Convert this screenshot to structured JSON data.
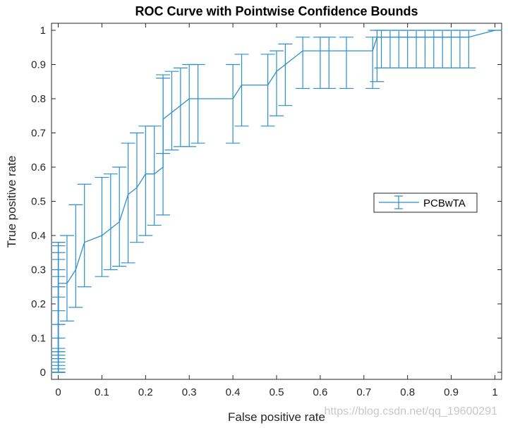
{
  "chart_data": {
    "type": "line",
    "title": "ROC Curve with Pointwise Confidence Bounds",
    "xlabel": "False positive rate",
    "ylabel": "True positive rate",
    "xlim": [
      0,
      1
    ],
    "ylim": [
      0,
      1
    ],
    "xticks": [
      0,
      0.1,
      0.2,
      0.3,
      0.4,
      0.5,
      0.6,
      0.7,
      0.8,
      0.9,
      1
    ],
    "xtick_labels": [
      "0",
      "0.1",
      "0.2",
      "0.3",
      "0.4",
      "0.5",
      "0.6",
      "0.7",
      "0.8",
      "0.9",
      "1"
    ],
    "yticks": [
      0,
      0.1,
      0.2,
      0.3,
      0.4,
      0.5,
      0.6,
      0.7,
      0.8,
      0.9,
      1
    ],
    "ytick_labels": [
      "0",
      "0.1",
      "0.2",
      "0.3",
      "0.4",
      "0.5",
      "0.6",
      "0.7",
      "0.8",
      "0.9",
      "1"
    ],
    "grid": false,
    "legend_position": "center-right",
    "series": [
      {
        "name": "PCBwTA",
        "color": "#2c8fcb",
        "x": [
          0,
          0,
          0,
          0,
          0,
          0,
          0,
          0,
          0,
          0,
          0,
          0,
          0,
          0.02,
          0.04,
          0.06,
          0.1,
          0.12,
          0.14,
          0.16,
          0.18,
          0.2,
          0.22,
          0.24,
          0.24,
          0.26,
          0.28,
          0.3,
          0.32,
          0.4,
          0.42,
          0.48,
          0.5,
          0.52,
          0.56,
          0.6,
          0.62,
          0.66,
          0.72,
          0.73,
          0.74,
          0.76,
          0.78,
          0.8,
          0.82,
          0.84,
          0.86,
          0.88,
          0.9,
          0.92,
          0.94,
          1
        ],
        "y": [
          0.02,
          0.04,
          0.06,
          0.08,
          0.1,
          0.12,
          0.14,
          0.16,
          0.18,
          0.2,
          0.22,
          0.24,
          0.26,
          0.26,
          0.3,
          0.38,
          0.4,
          0.42,
          0.44,
          0.52,
          0.54,
          0.58,
          0.58,
          0.6,
          0.74,
          0.76,
          0.78,
          0.8,
          0.8,
          0.8,
          0.84,
          0.84,
          0.88,
          0.9,
          0.94,
          0.94,
          0.94,
          0.94,
          0.94,
          0.98,
          0.98,
          0.98,
          0.98,
          0.98,
          0.98,
          0.98,
          0.98,
          0.98,
          0.98,
          0.98,
          0.98,
          1
        ],
        "lower": [
          0,
          0,
          0,
          0,
          0,
          0.01,
          0.02,
          0.03,
          0.04,
          0.05,
          0.06,
          0.07,
          0.14,
          0.15,
          0.19,
          0.25,
          0.28,
          0.3,
          0.31,
          0.32,
          0.38,
          0.4,
          0.43,
          0.46,
          0.64,
          0.65,
          0.66,
          0.66,
          0.67,
          0.67,
          0.72,
          0.72,
          0.75,
          0.78,
          0.83,
          0.83,
          0.83,
          0.83,
          0.83,
          0.85,
          0.89,
          0.89,
          0.89,
          0.89,
          0.89,
          0.89,
          0.89,
          0.89,
          0.89,
          0.89,
          0.89,
          1
        ],
        "upper": [
          0.06,
          0.1,
          0.14,
          0.18,
          0.22,
          0.25,
          0.28,
          0.3,
          0.33,
          0.35,
          0.37,
          0.38,
          0.38,
          0.4,
          0.49,
          0.55,
          0.57,
          0.58,
          0.6,
          0.67,
          0.7,
          0.72,
          0.72,
          0.86,
          0.87,
          0.88,
          0.89,
          0.9,
          0.9,
          0.9,
          0.93,
          0.93,
          0.94,
          0.96,
          0.98,
          0.98,
          0.98,
          0.98,
          0.98,
          1,
          1,
          1,
          1,
          1,
          1,
          1,
          1,
          1,
          1,
          1,
          1,
          1
        ]
      }
    ]
  },
  "watermark": "https://blog.csdn.net/qq_19600291"
}
